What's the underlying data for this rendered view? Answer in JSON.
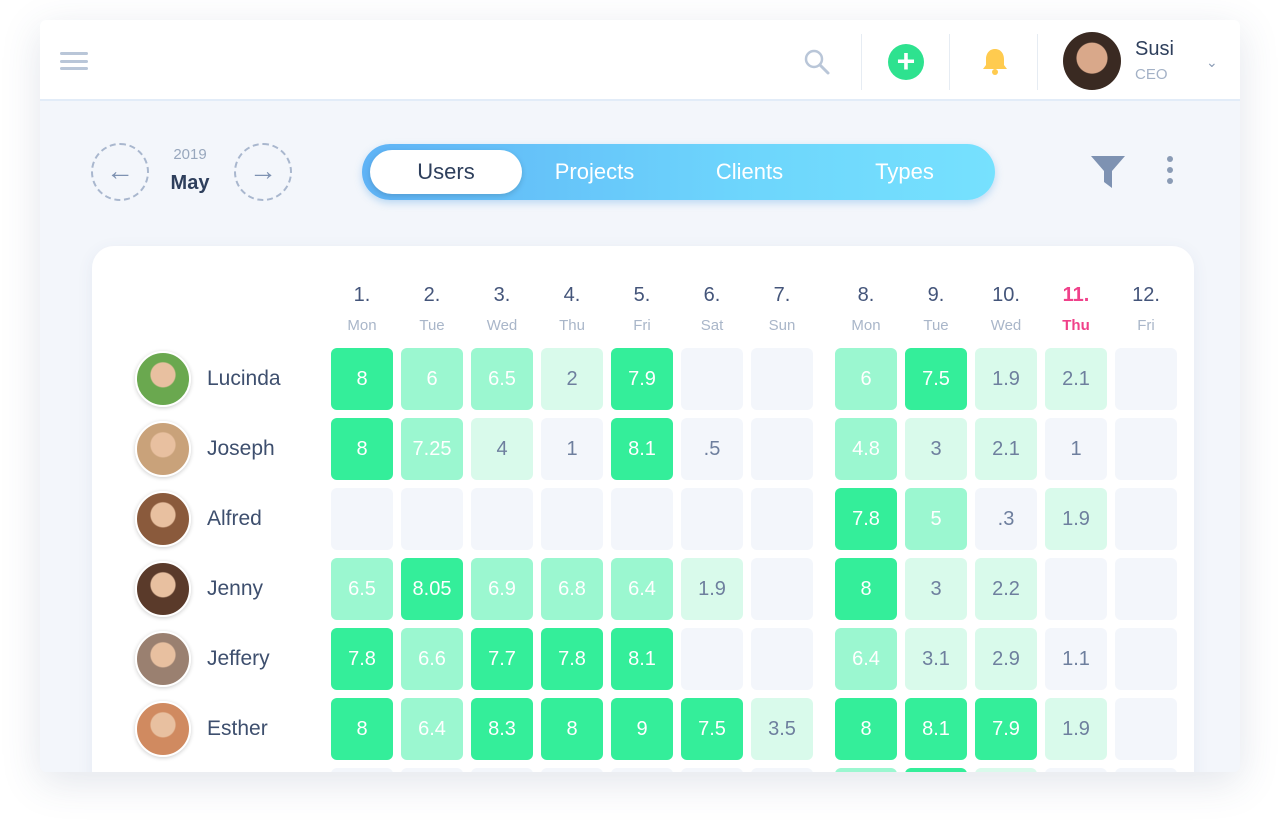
{
  "header": {
    "user": {
      "name": "Susi",
      "role": "CEO"
    },
    "icons": [
      "menu-icon",
      "search-icon",
      "plus-icon",
      "bell-icon",
      "chevron-down-icon"
    ]
  },
  "toolbar": {
    "year": "2019",
    "month": "May",
    "tabs": [
      "Users",
      "Projects",
      "Clients",
      "Types"
    ],
    "active_tab": "Users"
  },
  "colors": {
    "accent": "#34EE9A",
    "mid": "#9BF7D0",
    "light": "#D9FAEB",
    "empty": "#F3F6FB",
    "today": "#F0418A"
  },
  "days": [
    {
      "num": "1.",
      "wd": "Mon"
    },
    {
      "num": "2.",
      "wd": "Tue"
    },
    {
      "num": "3.",
      "wd": "Wed"
    },
    {
      "num": "4.",
      "wd": "Thu"
    },
    {
      "num": "5.",
      "wd": "Fri"
    },
    {
      "num": "6.",
      "wd": "Sat"
    },
    {
      "num": "7.",
      "wd": "Sun"
    },
    {
      "num": "8.",
      "wd": "Mon"
    },
    {
      "num": "9.",
      "wd": "Tue"
    },
    {
      "num": "10.",
      "wd": "Wed"
    },
    {
      "num": "11.",
      "wd": "Thu",
      "today": true
    },
    {
      "num": "12.",
      "wd": "Fri"
    }
  ],
  "users": [
    {
      "name": "Lucinda",
      "avatar": "#6aa84f",
      "cells": [
        [
          "8",
          3
        ],
        [
          "6",
          2
        ],
        [
          "6.5",
          2
        ],
        [
          "2",
          1
        ],
        [
          "7.9",
          3
        ],
        [
          "",
          0
        ],
        [
          "",
          0
        ],
        [
          "6",
          2
        ],
        [
          "7.5",
          3
        ],
        [
          "1.9",
          1
        ],
        [
          "2.1",
          1
        ],
        [
          "",
          0
        ]
      ]
    },
    {
      "name": "Joseph",
      "avatar": "#c9a27a",
      "cells": [
        [
          "8",
          3
        ],
        [
          "7.25",
          2
        ],
        [
          "4",
          1
        ],
        [
          "1",
          0
        ],
        [
          "8.1",
          3
        ],
        [
          ".5",
          0
        ],
        [
          "",
          0
        ],
        [
          "4.8",
          2
        ],
        [
          "3",
          1
        ],
        [
          "2.1",
          1
        ],
        [
          "1",
          0
        ],
        [
          "",
          0
        ]
      ]
    },
    {
      "name": "Alfred",
      "avatar": "#8a5a3c",
      "cells": [
        [
          "",
          0
        ],
        [
          "",
          0
        ],
        [
          "",
          0
        ],
        [
          "",
          0
        ],
        [
          "",
          0
        ],
        [
          "",
          0
        ],
        [
          "",
          0
        ],
        [
          "7.8",
          3
        ],
        [
          "5",
          2
        ],
        [
          ".3",
          0
        ],
        [
          "1.9",
          1
        ],
        [
          "",
          0
        ]
      ]
    },
    {
      "name": "Jenny",
      "avatar": "#5a3a2a",
      "cells": [
        [
          "6.5",
          2
        ],
        [
          "8.05",
          3
        ],
        [
          "6.9",
          2
        ],
        [
          "6.8",
          2
        ],
        [
          "6.4",
          2
        ],
        [
          "1.9",
          1
        ],
        [
          "",
          0
        ],
        [
          "8",
          3
        ],
        [
          "3",
          1
        ],
        [
          "2.2",
          1
        ],
        [
          "",
          0
        ],
        [
          "",
          0
        ]
      ]
    },
    {
      "name": "Jeffery",
      "avatar": "#9a8070",
      "cells": [
        [
          "7.8",
          3
        ],
        [
          "6.6",
          2
        ],
        [
          "7.7",
          3
        ],
        [
          "7.8",
          3
        ],
        [
          "8.1",
          3
        ],
        [
          "",
          0
        ],
        [
          "",
          0
        ],
        [
          "6.4",
          2
        ],
        [
          "3.1",
          1
        ],
        [
          "2.9",
          1
        ],
        [
          "1.1",
          0
        ],
        [
          "",
          0
        ]
      ]
    },
    {
      "name": "Esther",
      "avatar": "#d08a60",
      "cells": [
        [
          "8",
          3
        ],
        [
          "6.4",
          2
        ],
        [
          "8.3",
          3
        ],
        [
          "8",
          3
        ],
        [
          "9",
          3
        ],
        [
          "7.5",
          3
        ],
        [
          "3.5",
          1
        ],
        [
          "8",
          3
        ],
        [
          "8.1",
          3
        ],
        [
          "7.9",
          3
        ],
        [
          "1.9",
          1
        ],
        [
          "",
          0
        ]
      ]
    }
  ],
  "partial_row_levels": [
    0,
    0,
    0,
    0,
    0,
    0,
    0,
    2,
    3,
    1,
    0,
    0
  ]
}
